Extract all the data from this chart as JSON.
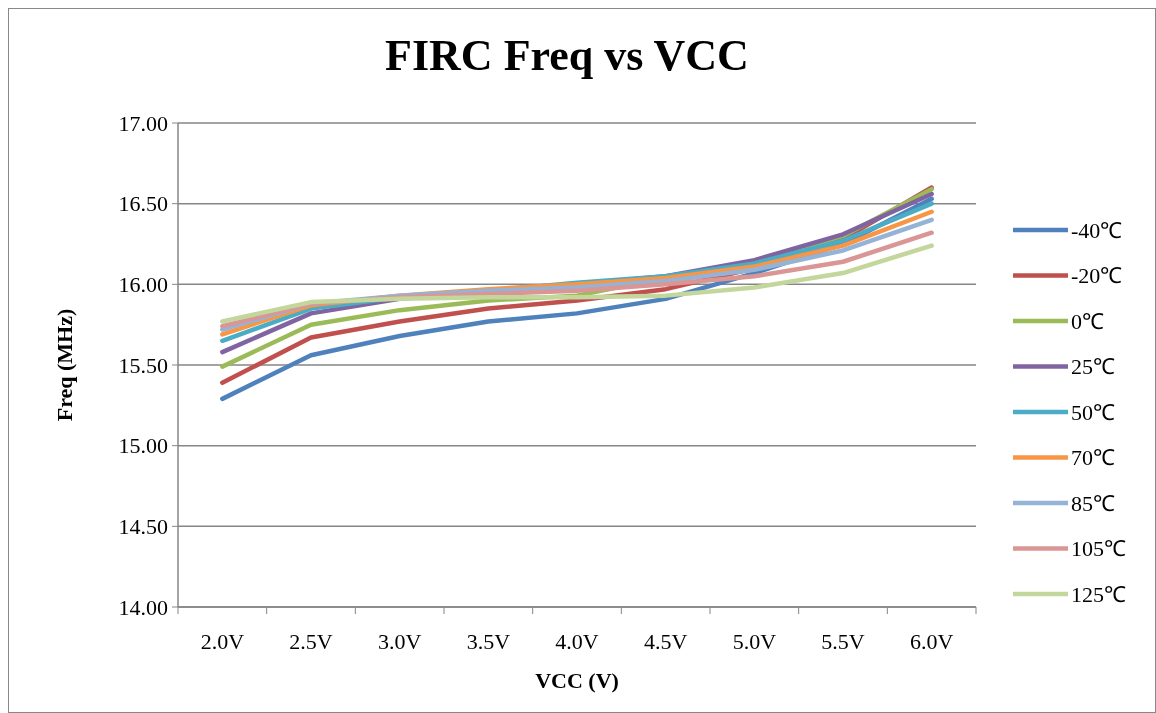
{
  "chart_data": {
    "type": "line",
    "title": "FIRC Freq vs VCC",
    "xlabel": "VCC (V)",
    "ylabel": "Freq (MHz)",
    "categories": [
      "2.0V",
      "2.5V",
      "3.0V",
      "3.5V",
      "4.0V",
      "4.5V",
      "5.0V",
      "5.5V",
      "6.0V"
    ],
    "ylim": [
      14,
      17
    ],
    "yticks": [
      {
        "value": 14,
        "label": "14.00"
      },
      {
        "value": 14.5,
        "label": "14.50"
      },
      {
        "value": 15,
        "label": "15.00"
      },
      {
        "value": 15.5,
        "label": "15.50"
      },
      {
        "value": 16,
        "label": "16.00"
      },
      {
        "value": 16.5,
        "label": "16.50"
      },
      {
        "value": 17,
        "label": "17.00"
      }
    ],
    "grid": "y",
    "legend": "right",
    "marker": "none",
    "line_style": "solid",
    "series": [
      {
        "name": "-40℃",
        "color": "#4f81bd",
        "values": [
          15.29,
          15.56,
          15.68,
          15.77,
          15.82,
          15.91,
          16.07,
          16.25,
          16.53
        ]
      },
      {
        "name": "-20℃",
        "color": "#c0504d",
        "values": [
          15.39,
          15.67,
          15.77,
          15.85,
          15.9,
          15.97,
          16.1,
          16.28,
          16.6
        ]
      },
      {
        "name": "0℃",
        "color": "#9bbb59",
        "values": [
          15.49,
          15.75,
          15.84,
          15.9,
          15.93,
          16.04,
          16.14,
          16.3,
          16.59
        ]
      },
      {
        "name": "25℃",
        "color": "#8064a2",
        "values": [
          15.58,
          15.82,
          15.91,
          15.96,
          16.0,
          16.05,
          16.15,
          16.31,
          16.56
        ]
      },
      {
        "name": "50℃",
        "color": "#4bacc6",
        "values": [
          15.65,
          15.85,
          15.92,
          15.96,
          16.01,
          16.05,
          16.13,
          16.27,
          16.5
        ]
      },
      {
        "name": "70℃",
        "color": "#f79646",
        "values": [
          15.69,
          15.87,
          15.93,
          15.97,
          16.0,
          16.04,
          16.11,
          16.24,
          16.45
        ]
      },
      {
        "name": "85℃",
        "color": "#95b3d7",
        "values": [
          15.72,
          15.88,
          15.93,
          15.96,
          15.98,
          16.02,
          16.09,
          16.21,
          16.4
        ]
      },
      {
        "name": "105℃",
        "color": "#d99694",
        "values": [
          15.74,
          15.88,
          15.92,
          15.94,
          15.96,
          16.0,
          16.05,
          16.14,
          16.32
        ]
      },
      {
        "name": "125℃",
        "color": "#c3d69b",
        "values": [
          15.77,
          15.89,
          15.91,
          15.92,
          15.92,
          15.93,
          15.98,
          16.07,
          16.24
        ]
      }
    ]
  }
}
